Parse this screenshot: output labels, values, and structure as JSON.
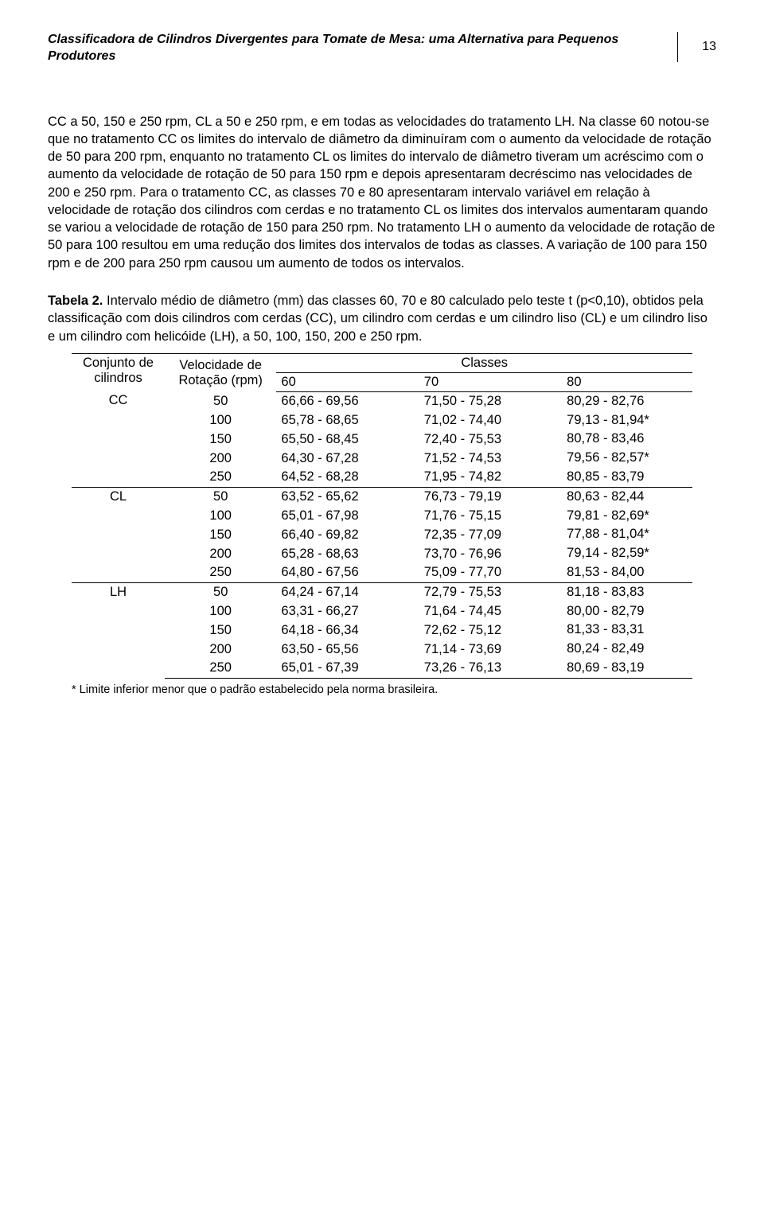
{
  "header": {
    "title": "Classificadora de Cilindros Divergentes para Tomate de Mesa: uma Alternativa para Pequenos Produtores",
    "page_number": "13"
  },
  "paragraph": "CC a 50, 150 e 250 rpm, CL a 50 e 250 rpm, e em todas as velocidades do tratamento LH. Na classe 60 notou-se que no tratamento CC os limites do intervalo de diâmetro da diminuíram com o aumento da velocidade de rotação de 50 para 200 rpm, enquanto no tratamento CL os limites do intervalo de diâmetro tiveram um acréscimo com o aumento da velocidade de rotação de 50 para 150 rpm e depois apresentaram decréscimo nas velocidades de 200 e 250 rpm. Para o tratamento CC, as classes 70 e 80 apresentaram intervalo variável em relação à velocidade de rotação dos cilindros com cerdas e no tratamento CL os limites dos intervalos aumentaram quando se variou a velocidade de rotação de 150 para 250 rpm. No tratamento LH o aumento da velocidade de rotação de 50 para 100 resultou em uma redução dos limites dos intervalos de todas as classes. A variação de 100 para 150 rpm e de 200 para 250 rpm causou um aumento de todos os intervalos.",
  "caption": {
    "label": "Tabela 2.",
    "text": " Intervalo médio de diâmetro (mm) das classes 60, 70 e 80 calculado pelo teste t (p<0,10), obtidos pela classificação com dois cilindros com cerdas (CC), um cilindro com cerdas e um cilindro liso (CL) e um cilindro liso e um cilindro com helicóide (LH), a 50, 100, 150, 200 e 250 rpm."
  },
  "table": {
    "head": {
      "conj": "Conjunto de cilindros",
      "vel": "Velocidade de Rotação (rpm)",
      "classes": "Classes",
      "c60": "60",
      "c70": "70",
      "c80": "80"
    },
    "groups": [
      {
        "label": "CC",
        "rows": [
          {
            "vel": "50",
            "c60": "66,66 - 69,56",
            "c70": "71,50 - 75,28",
            "c80": "80,29 - 82,76"
          },
          {
            "vel": "100",
            "c60": "65,78 - 68,65",
            "c70": "71,02 - 74,40",
            "c80": "79,13 - 81,94*"
          },
          {
            "vel": "150",
            "c60": "65,50 - 68,45",
            "c70": "72,40 - 75,53",
            "c80": "80,78 - 83,46"
          },
          {
            "vel": "200",
            "c60": "64,30 - 67,28",
            "c70": "71,52 - 74,53",
            "c80": "79,56 - 82,57*"
          },
          {
            "vel": "250",
            "c60": "64,52 - 68,28",
            "c70": "71,95 - 74,82",
            "c80": "80,85 - 83,79"
          }
        ]
      },
      {
        "label": "CL",
        "rows": [
          {
            "vel": "50",
            "c60": "63,52 - 65,62",
            "c70": "76,73 - 79,19",
            "c80": "80,63 - 82,44"
          },
          {
            "vel": "100",
            "c60": "65,01 - 67,98",
            "c70": "71,76 - 75,15",
            "c80": "79,81 - 82,69*"
          },
          {
            "vel": "150",
            "c60": "66,40 - 69,82",
            "c70": "72,35 - 77,09",
            "c80": "77,88 - 81,04*"
          },
          {
            "vel": "200",
            "c60": "65,28 - 68,63",
            "c70": "73,70 - 76,96",
            "c80": "79,14 - 82,59*"
          },
          {
            "vel": "250",
            "c60": "64,80 - 67,56",
            "c70": "75,09 - 77,70",
            "c80": "81,53 - 84,00"
          }
        ]
      },
      {
        "label": "LH",
        "rows": [
          {
            "vel": "50",
            "c60": "64,24 - 67,14",
            "c70": "72,79 - 75,53",
            "c80": "81,18 - 83,83"
          },
          {
            "vel": "100",
            "c60": "63,31 - 66,27",
            "c70": "71,64 - 74,45",
            "c80": "80,00 - 82,79"
          },
          {
            "vel": "150",
            "c60": "64,18 - 66,34",
            "c70": "72,62 - 75,12",
            "c80": "81,33 - 83,31"
          },
          {
            "vel": "200",
            "c60": "63,50 - 65,56",
            "c70": "71,14 - 73,69",
            "c80": "80,24 - 82,49"
          },
          {
            "vel": "250",
            "c60": "65,01 - 67,39",
            "c70": "73,26 - 76,13",
            "c80": "80,69 - 83,19"
          }
        ]
      }
    ]
  },
  "footnote": "* Limite inferior menor que o padrão estabelecido pela norma brasileira."
}
